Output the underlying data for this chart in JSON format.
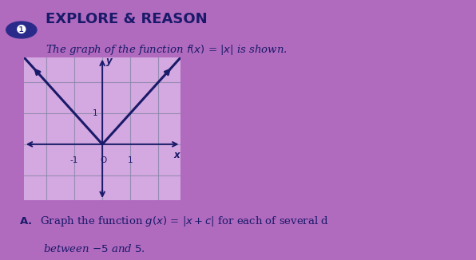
{
  "bg_color": "#b06abe",
  "title_line1": "EXPLORE & REASON",
  "circle_color": "#2a2a8a",
  "graph_bg": "#d4a8e0",
  "graph_line_color": "#1a1a6a",
  "graph_grid_color": "#8888aa",
  "arrow_color": "#1a1a6a",
  "tick_label_color": "#1a1a6a",
  "text_color": "#1a1a6a",
  "graph_xlim": [
    -2.8,
    2.8
  ],
  "graph_ylim": [
    -1.8,
    2.8
  ],
  "xlabel": "x",
  "ylabel": "y"
}
